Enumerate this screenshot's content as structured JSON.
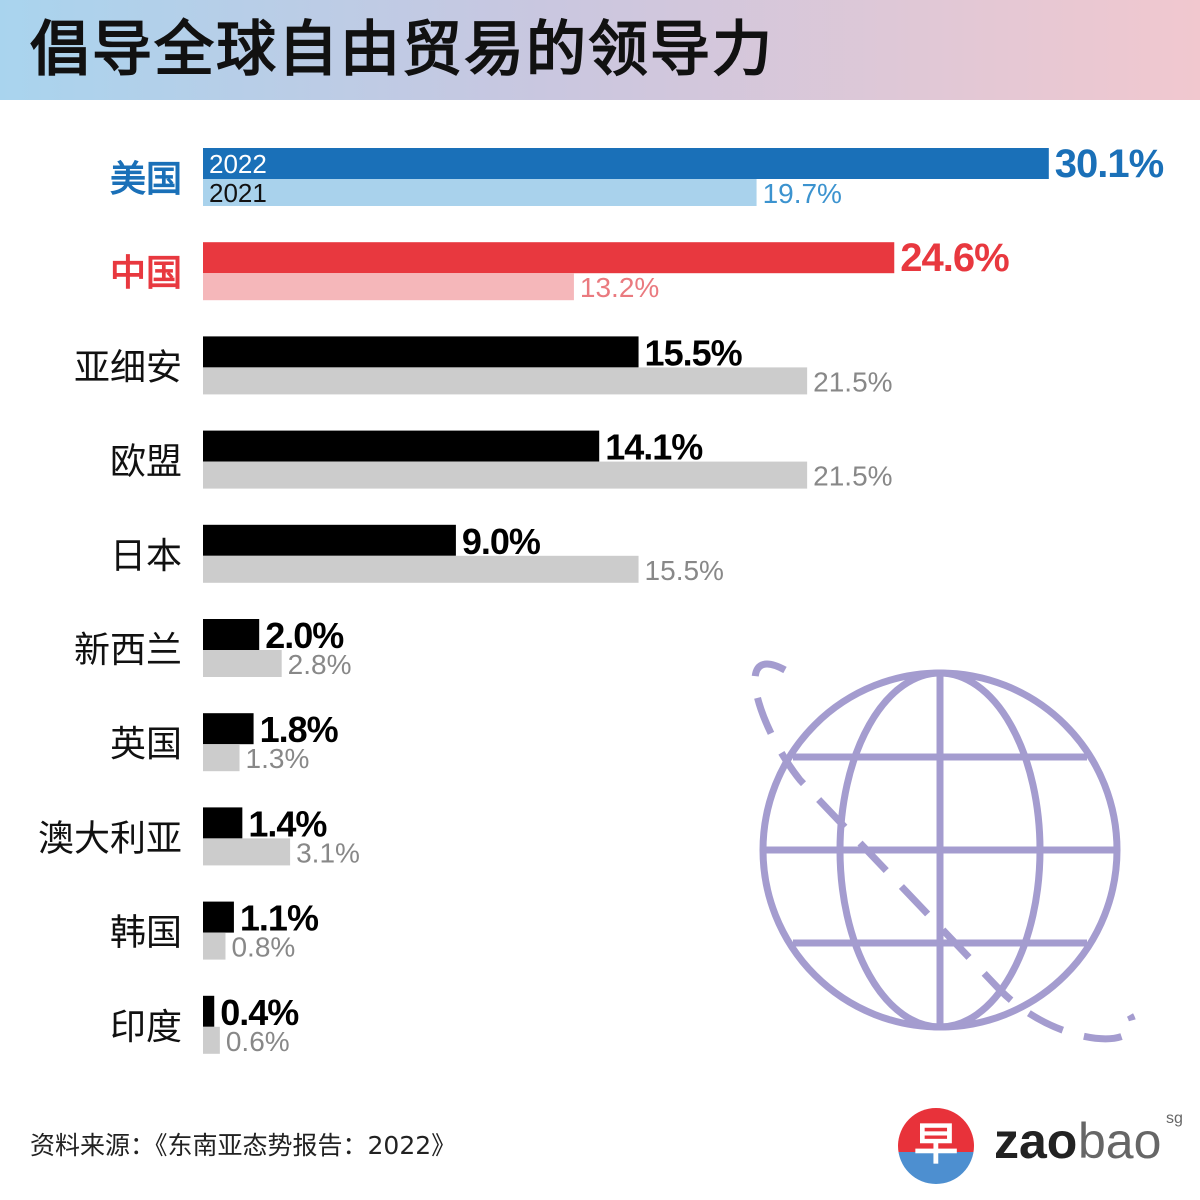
{
  "title": "倡导全球自由贸易的领导力",
  "source": "资料来源：《东南亚态势报告：2022》",
  "logo": {
    "glyph": "早",
    "brand_bold": "zao",
    "brand_light": "bao",
    "suffix": "sg"
  },
  "colors": {
    "usa_2022": "#1a70b8",
    "usa_2021": "#a9d2ec",
    "china_2022": "#e8383f",
    "china_2021": "#f5b7ba",
    "other_2022": "#000000",
    "other_2021": "#cccccc",
    "usa_label": "#1a70b8",
    "china_label": "#e8383f",
    "globe": "#a49ccf"
  },
  "chart_data": {
    "type": "bar",
    "orientation": "horizontal",
    "categories": [
      "美国",
      "中国",
      "亚细安",
      "欧盟",
      "日本",
      "新西兰",
      "英国",
      "澳大利亚",
      "韩国",
      "印度"
    ],
    "series": [
      {
        "name": "2022",
        "values": [
          30.1,
          24.6,
          15.5,
          14.1,
          9.0,
          2.0,
          1.8,
          1.4,
          1.1,
          0.4
        ]
      },
      {
        "name": "2021",
        "values": [
          19.7,
          13.2,
          21.5,
          21.5,
          15.5,
          2.8,
          1.3,
          3.1,
          0.8,
          0.6
        ]
      }
    ],
    "value_labels_2022": [
      "30.1%",
      "24.6%",
      "15.5%",
      "14.1%",
      "9.0%",
      "2.0%",
      "1.8%",
      "1.4%",
      "1.1%",
      "0.4%"
    ],
    "value_labels_2021": [
      "19.7%",
      "13.2%",
      "21.5%",
      "21.5%",
      "15.5%",
      "2.8%",
      "1.3%",
      "3.1%",
      "0.8%",
      "0.6%"
    ],
    "series_label_2022": "2022",
    "series_label_2021": "2021",
    "unit": "%",
    "grid": false
  }
}
